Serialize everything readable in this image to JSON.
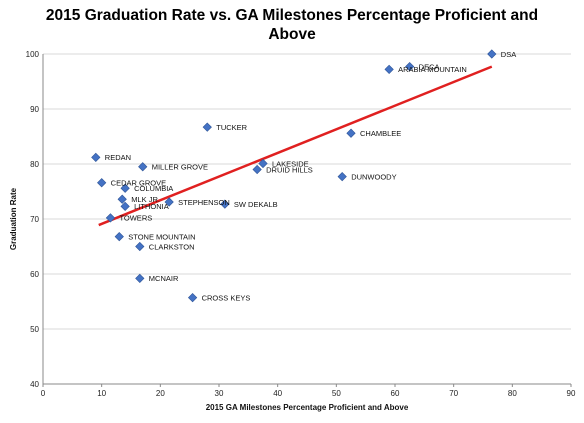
{
  "chart_data": {
    "type": "scatter",
    "title_line1": "2015 Graduation Rate vs. GA Milestones Percentage Proficient and",
    "title_line2": "Above",
    "xlabel": "2015 GA Milestones Percentage Proficient and Above",
    "ylabel": "Graduation Rate",
    "xlim": [
      0,
      90
    ],
    "ylim": [
      40,
      100
    ],
    "x_ticks": [
      0,
      10,
      20,
      30,
      40,
      50,
      60,
      70,
      80,
      90
    ],
    "y_ticks": [
      40,
      50,
      60,
      70,
      80,
      90,
      100
    ],
    "grid": "horizontal",
    "legend": "none",
    "colors": {
      "marker": "#4472C4",
      "trendline": "#E02020",
      "gridline": "#d9d9d9"
    },
    "points": [
      {
        "name": "DSA",
        "x": 76.5,
        "y": 100
      },
      {
        "name": "DECA",
        "x": 62.5,
        "y": 97.7
      },
      {
        "name": "ARABIA MOUNTAIN",
        "x": 59,
        "y": 97.2
      },
      {
        "name": "TUCKER",
        "x": 28,
        "y": 86.7
      },
      {
        "name": "CHAMBLEE",
        "x": 52.5,
        "y": 85.6
      },
      {
        "name": "REDAN",
        "x": 9,
        "y": 81.2
      },
      {
        "name": "MILLER GROVE",
        "x": 17,
        "y": 79.5
      },
      {
        "name": "LAKESIDE",
        "x": 37.5,
        "y": 80.1
      },
      {
        "name": "DRUID HILLS",
        "x": 36.5,
        "y": 79
      },
      {
        "name": "DUNWOODY",
        "x": 51,
        "y": 77.7
      },
      {
        "name": "CEDAR GROVE",
        "x": 10,
        "y": 76.6
      },
      {
        "name": "COLUMBIA",
        "x": 14,
        "y": 75.6
      },
      {
        "name": "MLK JR.",
        "x": 13.5,
        "y": 73.6
      },
      {
        "name": "LITHONIA",
        "x": 14,
        "y": 72.3
      },
      {
        "name": "STEPHENSON",
        "x": 21.5,
        "y": 73.1
      },
      {
        "name": "SW DEKALB",
        "x": 31,
        "y": 72.7
      },
      {
        "name": "TOWERS",
        "x": 11.5,
        "y": 70.2
      },
      {
        "name": "STONE MOUNTAIN",
        "x": 13,
        "y": 66.8
      },
      {
        "name": "CLARKSTON",
        "x": 16.5,
        "y": 65
      },
      {
        "name": "MCNAIR",
        "x": 16.5,
        "y": 59.2
      },
      {
        "name": "CROSS KEYS",
        "x": 25.5,
        "y": 55.7
      }
    ],
    "trendline": {
      "x": [
        9.5,
        76.5
      ],
      "y": [
        68.9,
        97.7
      ]
    }
  }
}
